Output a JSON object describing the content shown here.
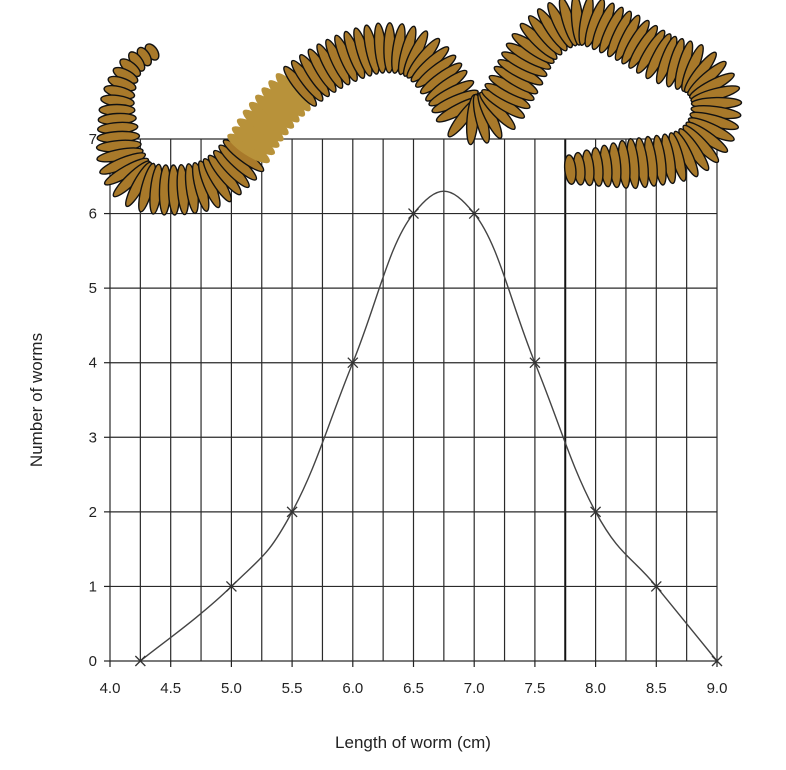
{
  "chart_data": {
    "type": "line",
    "xlabel": "Length of worm (cm)",
    "ylabel": "Number of worms",
    "xlim": [
      4.0,
      9.0
    ],
    "ylim": [
      0,
      7
    ],
    "x_ticks": [
      "4.0",
      "4.5",
      "5.0",
      "5.5",
      "6.0",
      "6.5",
      "7.0",
      "7.5",
      "8.0",
      "8.5",
      "9.0"
    ],
    "y_ticks": [
      "0",
      "1",
      "2",
      "3",
      "4",
      "5",
      "6",
      "7"
    ],
    "grid": true,
    "grid_x_step": 0.25,
    "grid_y_step": 1,
    "series": [
      {
        "x": [
          4.25,
          5.0,
          5.5,
          6.0,
          6.5,
          7.0,
          7.5,
          8.0,
          8.5,
          9.0
        ],
        "y": [
          0,
          1,
          2,
          4,
          6,
          6,
          4,
          2,
          1,
          0
        ],
        "marker": "x",
        "color": "#444444",
        "smooth": true
      }
    ],
    "illustration": "earthworm",
    "colors": {
      "worm_body": "#a8792a",
      "worm_clitellum": "#b8923a",
      "worm_outline": "#111111"
    }
  }
}
